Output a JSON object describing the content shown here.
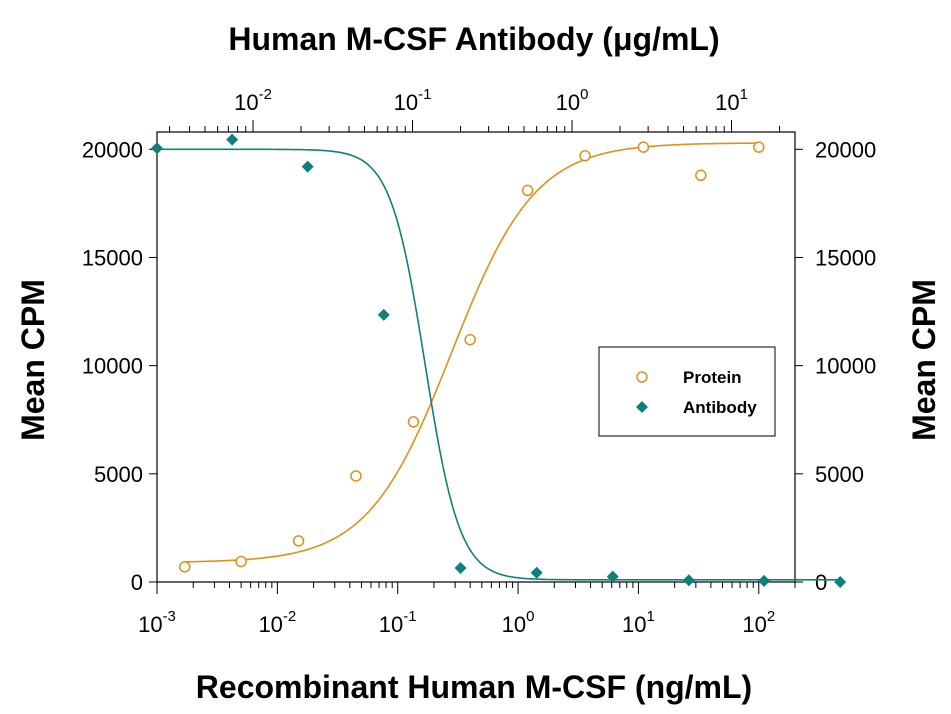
{
  "chart_data": {
    "type": "scatter",
    "top_title": "Human M-CSF Antibody (μg/mL)",
    "xlabel": "Recombinant Human M-CSF (ng/mL)",
    "ylabel_left": "Mean CPM",
    "ylabel_right": "Mean CPM",
    "x_scale": "log",
    "xlim": [
      0.001,
      200
    ],
    "ylim": [
      0,
      20800
    ],
    "y_ticks": [
      0,
      5000,
      10000,
      15000,
      20000
    ],
    "x_ticks_bottom": [
      {
        "value": 0.001,
        "base": "10",
        "exp": "-3"
      },
      {
        "value": 0.01,
        "base": "10",
        "exp": "-2"
      },
      {
        "value": 0.1,
        "base": "10",
        "exp": "-1"
      },
      {
        "value": 1,
        "base": "10",
        "exp": "0"
      },
      {
        "value": 10,
        "base": "10",
        "exp": "1"
      },
      {
        "value": 100,
        "base": "10",
        "exp": "2"
      }
    ],
    "x_ticks_top": [
      {
        "value": 0.01,
        "base": "10",
        "exp": "-2"
      },
      {
        "value": 0.1,
        "base": "10",
        "exp": "-1"
      },
      {
        "value": 1,
        "base": "10",
        "exp": "0"
      },
      {
        "value": 10,
        "base": "10",
        "exp": "1"
      }
    ],
    "top_axis_range": [
      0.0025,
      25
    ],
    "legend_position": "right-middle",
    "series": [
      {
        "name": "Protein",
        "color": "#e0901a",
        "marker": "open-circle",
        "axis": "bottom",
        "x": [
          0.0017,
          0.005,
          0.015,
          0.045,
          0.135,
          0.4,
          1.2,
          3.6,
          11,
          33,
          100
        ],
        "y": [
          700,
          950,
          1900,
          4900,
          7400,
          11200,
          18100,
          19700,
          20100,
          18800,
          20100
        ]
      },
      {
        "name": "Antibody",
        "color": "#10807a",
        "marker": "filled-diamond",
        "axis": "top",
        "x": [
          0.0025,
          0.0074,
          0.022,
          0.066,
          0.2,
          0.6,
          1.8,
          5.4,
          16,
          48
        ],
        "y": [
          20050,
          20450,
          19200,
          12350,
          650,
          430,
          250,
          80,
          50,
          0
        ]
      }
    ],
    "fits": [
      {
        "series": "Protein",
        "bottom": 900,
        "top": 20300,
        "ec50": 0.28,
        "hill": 1.25
      },
      {
        "series": "Antibody",
        "bottom": 100,
        "top": 20000,
        "ec50": 0.12,
        "hill": -4.0
      }
    ]
  }
}
